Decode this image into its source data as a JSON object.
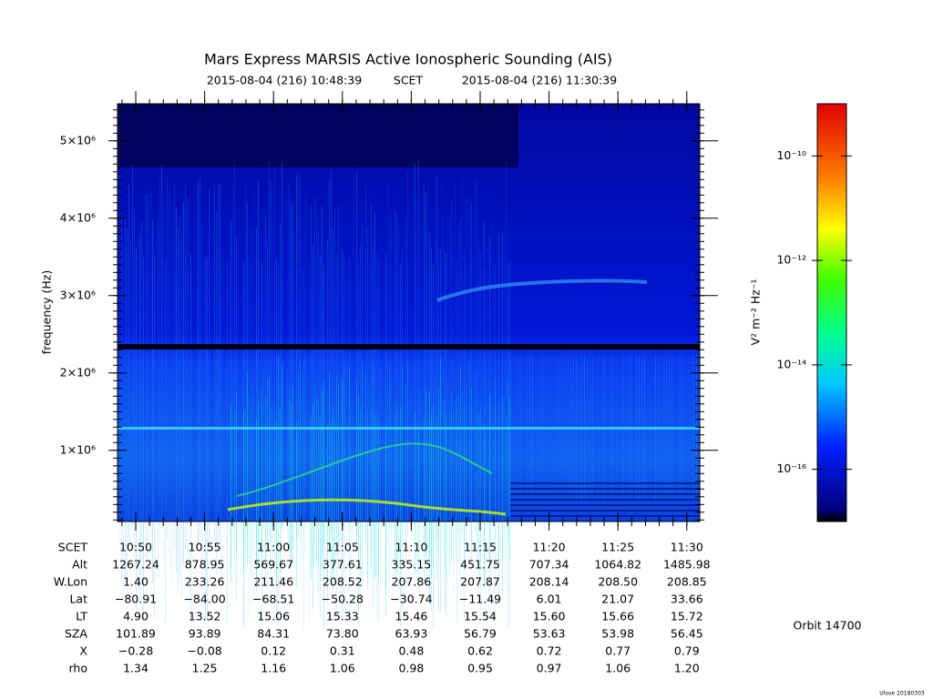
{
  "chart_data": {
    "type": "spectrogram",
    "title": "Mars Express MARSIS Active Ionospheric Sounding (AIS)",
    "subtitle": [
      "2015-08-04 (216) 10:48:39",
      "SCET",
      "2015-08-04 (216) 11:30:39"
    ],
    "y_label": "frequency (Hz)",
    "ylim": [
      80000,
      5480000
    ],
    "yticks": [
      {
        "value": 1000000,
        "label": "1×10⁶"
      },
      {
        "value": 2000000,
        "label": "2×10⁶"
      },
      {
        "value": 3000000,
        "label": "3×10⁶"
      },
      {
        "value": 4000000,
        "label": "4×10⁶"
      },
      {
        "value": 5000000,
        "label": "5×10⁶"
      }
    ],
    "colorbar": {
      "label": "V² m⁻² Hz⁻¹",
      "log_scale": true,
      "clim": [
        1e-17,
        1e-09
      ],
      "ticks": [
        {
          "value": 1e-16,
          "label": "10⁻¹⁶"
        },
        {
          "value": 1e-14,
          "label": "10⁻¹⁴"
        },
        {
          "value": 1e-12,
          "label": "10⁻¹²"
        },
        {
          "value": 1e-10,
          "label": "10⁻¹⁰"
        }
      ]
    },
    "table": {
      "row_labels": [
        "SCET",
        "Alt",
        "W.Lon",
        "Lat",
        "LT",
        "SZA",
        "X",
        "rho"
      ],
      "rows": [
        [
          "10:50",
          "10:55",
          "11:00",
          "11:05",
          "11:10",
          "11:15",
          "11:20",
          "11:25",
          "11:30"
        ],
        [
          "1267.24",
          "878.95",
          "569.67",
          "377.61",
          "335.15",
          "451.75",
          "707.34",
          "1064.82",
          "1485.98"
        ],
        [
          "1.40",
          "233.26",
          "211.46",
          "208.52",
          "207.86",
          "207.87",
          "208.14",
          "208.50",
          "208.85"
        ],
        [
          "−80.91",
          "−84.00",
          "−68.51",
          "−50.28",
          "−30.74",
          "−11.49",
          "6.01",
          "21.07",
          "33.66"
        ],
        [
          "4.90",
          "13.52",
          "15.06",
          "15.33",
          "15.46",
          "15.54",
          "15.60",
          "15.66",
          "15.72"
        ],
        [
          "101.89",
          "93.89",
          "84.31",
          "73.80",
          "63.93",
          "56.79",
          "53.63",
          "53.98",
          "56.45"
        ],
        [
          "−0.28",
          "−0.08",
          "0.12",
          "0.31",
          "0.48",
          "0.62",
          "0.72",
          "0.77",
          "0.79"
        ],
        [
          "1.34",
          "1.25",
          "1.16",
          "1.06",
          "0.98",
          "0.95",
          "0.97",
          "1.06",
          "1.20"
        ]
      ]
    },
    "orbit": "Orbit 14700",
    "footer": "Ulove 20180303"
  }
}
